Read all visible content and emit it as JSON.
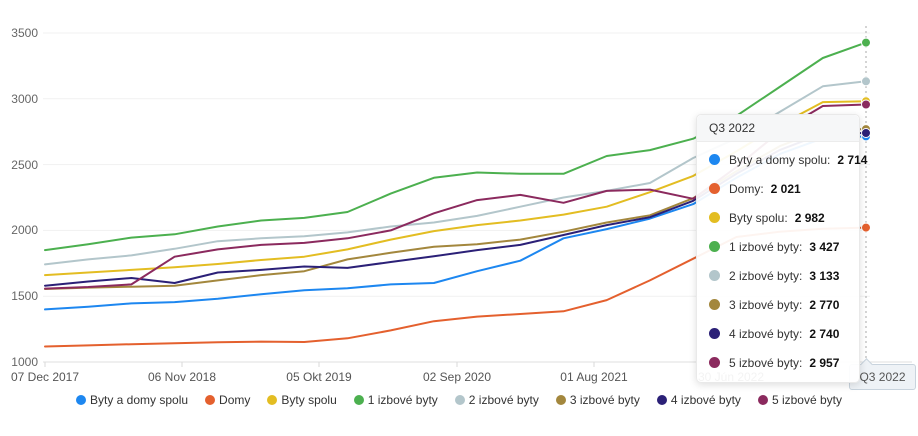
{
  "chart": {
    "crosshair_label": "Q3 2022"
  },
  "chart_data": {
    "type": "line",
    "title": "",
    "xlabel": "",
    "ylabel": "",
    "ylim": [
      1000,
      3500
    ],
    "y_tick_labels": [
      "1000",
      "1500",
      "2000",
      "2500",
      "3000",
      "3500"
    ],
    "x_tick_labels": [
      "07 Dec 2017",
      "06 Nov 2018",
      "05 Okt 2019",
      "02 Sep 2020",
      "01 Aug 2021",
      "30 Jún 2022"
    ],
    "highlight_x_label": "Q3 2022",
    "grid": "horizontal",
    "legend_position": "bottom",
    "series": [
      {
        "name": "Byty a domy spolu",
        "color": "#1d87f0",
        "values": [
          1400,
          1420,
          1445,
          1455,
          1480,
          1515,
          1545,
          1560,
          1590,
          1600,
          1690,
          1770,
          1940,
          2010,
          2090,
          2200,
          2400,
          2580,
          2700,
          2714
        ]
      },
      {
        "name": "Domy",
        "color": "#e4602e",
        "values": [
          1118,
          1126,
          1135,
          1142,
          1150,
          1155,
          1152,
          1180,
          1240,
          1310,
          1345,
          1365,
          1385,
          1470,
          1620,
          1785,
          1950,
          1990,
          2012,
          2021
        ]
      },
      {
        "name": "Byty spolu",
        "color": "#e3bd22",
        "values": [
          1660,
          1680,
          1700,
          1720,
          1745,
          1775,
          1800,
          1856,
          1930,
          1995,
          2040,
          2075,
          2120,
          2180,
          2290,
          2414,
          2600,
          2800,
          2975,
          2982
        ]
      },
      {
        "name": "1 izbové byty",
        "color": "#4cb04f",
        "values": [
          1850,
          1895,
          1945,
          1970,
          2030,
          2075,
          2095,
          2140,
          2280,
          2400,
          2440,
          2430,
          2430,
          2565,
          2610,
          2697,
          2870,
          3090,
          3310,
          3427
        ]
      },
      {
        "name": "2 izbové byty",
        "color": "#b3c6cb",
        "values": [
          1742,
          1780,
          1810,
          1860,
          1918,
          1940,
          1955,
          1985,
          2030,
          2060,
          2110,
          2180,
          2250,
          2300,
          2360,
          2550,
          2700,
          2900,
          3095,
          3133
        ]
      },
      {
        "name": "3 izbové byty",
        "color": "#a3873d",
        "values": [
          1555,
          1565,
          1572,
          1580,
          1620,
          1660,
          1690,
          1780,
          1830,
          1875,
          1895,
          1930,
          1990,
          2060,
          2115,
          2245,
          2450,
          2640,
          2765,
          2770
        ]
      },
      {
        "name": "4 izbové byty",
        "color": "#2b2077",
        "values": [
          1580,
          1612,
          1638,
          1600,
          1680,
          1700,
          1726,
          1715,
          1760,
          1803,
          1850,
          1890,
          1965,
          2040,
          2100,
          2225,
          2430,
          2610,
          2735,
          2740
        ]
      },
      {
        "name": "5 izbové byty",
        "color": "#8b2a5e",
        "values": [
          1558,
          1570,
          1590,
          1800,
          1856,
          1890,
          1905,
          1940,
          2000,
          2130,
          2230,
          2270,
          2210,
          2300,
          2310,
          2240,
          2480,
          2750,
          2945,
          2957
        ]
      }
    ]
  },
  "tooltip": {
    "title": "Q3 2022",
    "rows": [
      {
        "label": "Byty a domy spolu:",
        "value": "2 714",
        "color": "#1d87f0"
      },
      {
        "label": "Domy:",
        "value": "2 021",
        "color": "#e4602e"
      },
      {
        "label": "Byty spolu:",
        "value": "2 982",
        "color": "#e3bd22"
      },
      {
        "label": "1 izbové byty:",
        "value": "3 427",
        "color": "#4cb04f"
      },
      {
        "label": "2 izbové byty:",
        "value": "3 133",
        "color": "#b3c6cb"
      },
      {
        "label": "3 izbové byty:",
        "value": "2 770",
        "color": "#a3873d"
      },
      {
        "label": "4 izbové byty:",
        "value": "2 740",
        "color": "#2b2077"
      },
      {
        "label": "5 izbové byty:",
        "value": "2 957",
        "color": "#8b2a5e"
      }
    ]
  },
  "legend": {
    "items": [
      {
        "label": "Byty a domy spolu",
        "color": "#1d87f0"
      },
      {
        "label": "Domy",
        "color": "#e4602e"
      },
      {
        "label": "Byty spolu",
        "color": "#e3bd22"
      },
      {
        "label": "1 izbové byty",
        "color": "#4cb04f"
      },
      {
        "label": "2 izbové byty",
        "color": "#b3c6cb"
      },
      {
        "label": "3 izbové byty",
        "color": "#a3873d"
      },
      {
        "label": "4 izbové byty",
        "color": "#2b2077"
      },
      {
        "label": "5 izbové byty",
        "color": "#8b2a5e"
      }
    ]
  }
}
